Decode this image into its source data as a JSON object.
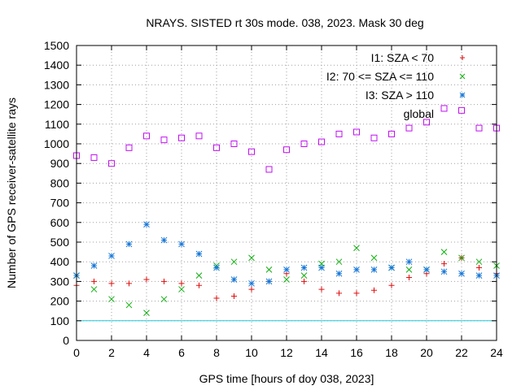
{
  "chart_data": {
    "type": "scatter",
    "title": "NRAYS. SISTED rt 30s mode. 038, 2023. Mask 30 deg",
    "xlabel": "GPS time [hours of doy 038, 2023]",
    "ylabel": "Number of GPS receiver-satellite rays",
    "xlim": [
      0,
      24
    ],
    "ylim": [
      0,
      1500
    ],
    "xticks": [
      0,
      2,
      4,
      6,
      8,
      10,
      12,
      14,
      16,
      18,
      20,
      22,
      24
    ],
    "yticks": [
      0,
      100,
      200,
      300,
      400,
      500,
      600,
      700,
      800,
      900,
      1000,
      1100,
      1200,
      1300,
      1400,
      1500
    ],
    "grid": true,
    "legend_position": "top-right",
    "series": [
      {
        "name": "I1: SZA < 70",
        "marker": "+",
        "color": "#e01010",
        "x": [
          0,
          1,
          2,
          3,
          4,
          5,
          6,
          7,
          8,
          9,
          10,
          11,
          12,
          13,
          14,
          15,
          16,
          17,
          18,
          19,
          20,
          21,
          22,
          23,
          24
        ],
        "y": [
          280,
          300,
          290,
          290,
          310,
          300,
          290,
          280,
          215,
          225,
          260,
          300,
          340,
          300,
          260,
          240,
          240,
          255,
          280,
          320,
          340,
          390,
          420,
          370,
          340
        ]
      },
      {
        "name": "I2: 70 <= SZA <= 110",
        "marker": "x",
        "color": "#10b010",
        "x": [
          0,
          1,
          2,
          3,
          4,
          5,
          6,
          7,
          8,
          9,
          10,
          11,
          12,
          13,
          14,
          15,
          16,
          17,
          18,
          19,
          20,
          21,
          22,
          23,
          24
        ],
        "y": [
          330,
          260,
          210,
          180,
          140,
          210,
          260,
          330,
          380,
          400,
          420,
          360,
          310,
          330,
          390,
          400,
          470,
          420,
          370,
          360,
          360,
          450,
          420,
          400,
          380
        ]
      },
      {
        "name": "I3: SZA > 110",
        "marker": "*",
        "color": "#1878d8",
        "x": [
          0,
          1,
          2,
          3,
          4,
          5,
          6,
          7,
          8,
          9,
          10,
          11,
          12,
          13,
          14,
          15,
          16,
          17,
          18,
          19,
          20,
          21,
          22,
          23,
          24
        ],
        "y": [
          330,
          380,
          430,
          490,
          590,
          510,
          490,
          440,
          370,
          310,
          290,
          300,
          360,
          370,
          370,
          340,
          360,
          360,
          370,
          400,
          360,
          350,
          340,
          330,
          330
        ]
      },
      {
        "name": "global",
        "marker": "square",
        "color": "#c010f0",
        "x": [
          0,
          1,
          2,
          3,
          4,
          5,
          6,
          7,
          8,
          9,
          10,
          11,
          12,
          13,
          14,
          15,
          16,
          17,
          18,
          19,
          20,
          21,
          22,
          23,
          24
        ],
        "y": [
          940,
          930,
          900,
          980,
          1040,
          1020,
          1030,
          1040,
          980,
          1000,
          960,
          870,
          970,
          1000,
          1010,
          1050,
          1060,
          1030,
          1050,
          1080,
          1110,
          1180,
          1170,
          1080,
          1080
        ]
      }
    ],
    "reference_lines": [
      {
        "y": 100,
        "color": "#20c8d8"
      }
    ]
  }
}
